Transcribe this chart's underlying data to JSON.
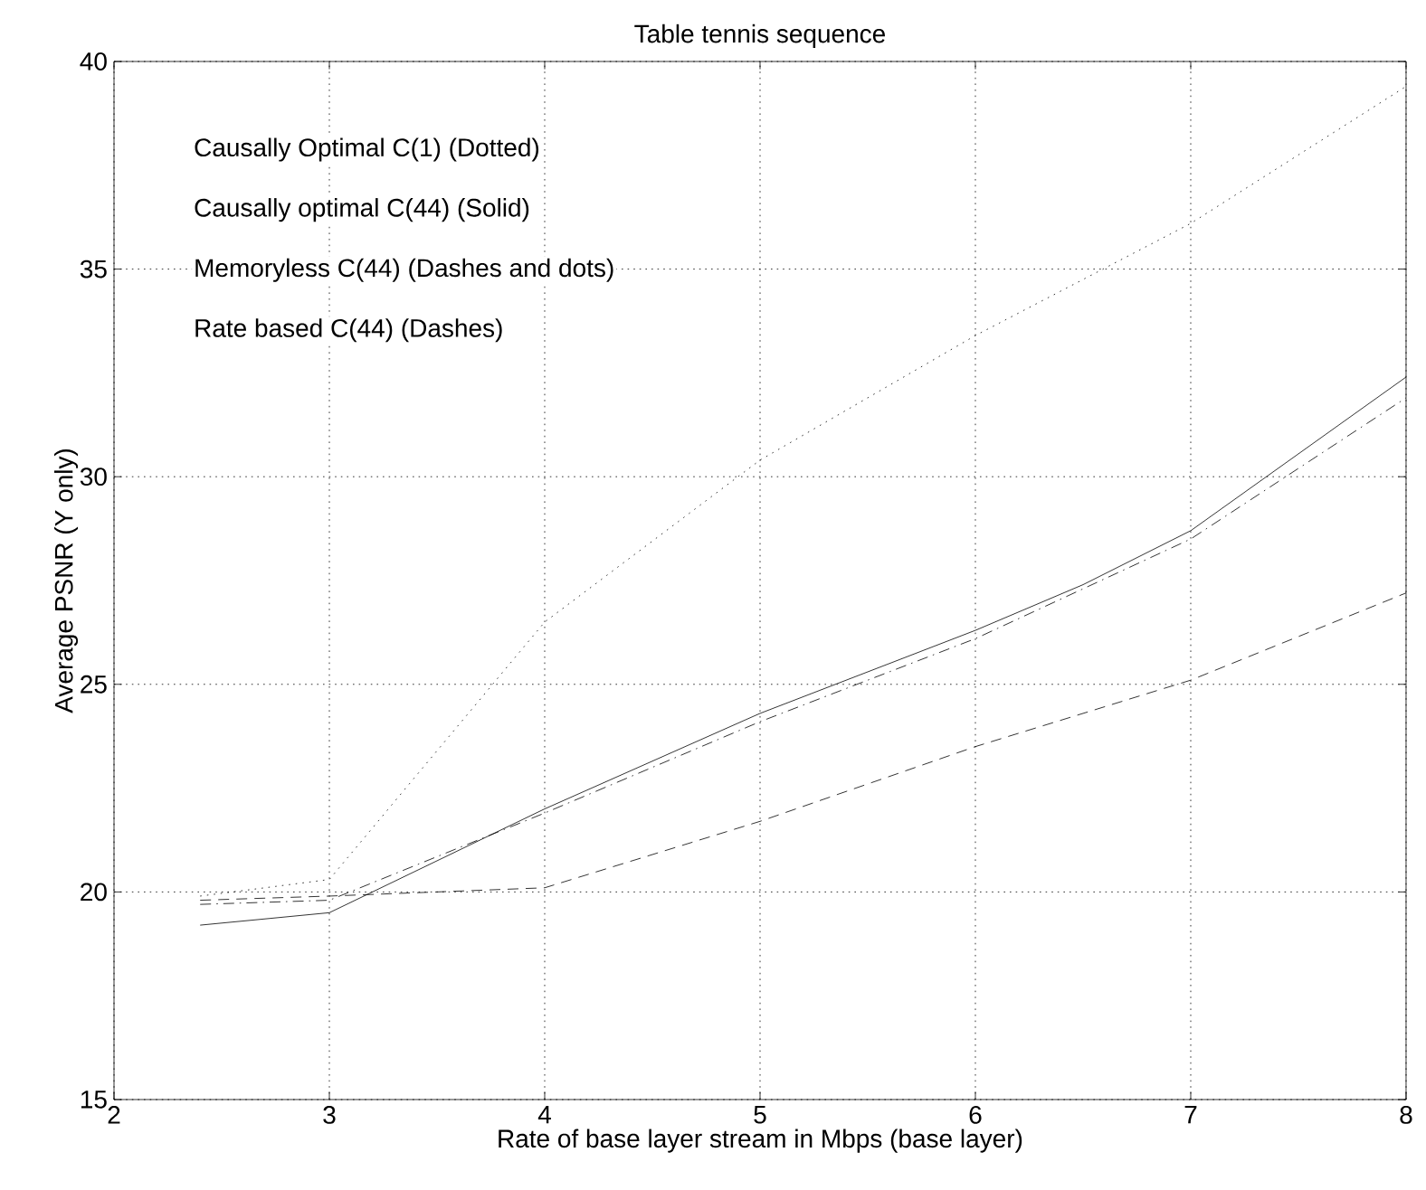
{
  "chart_data": {
    "type": "line",
    "title": "Table tennis sequence",
    "xlabel": "Rate of base layer stream in Mbps (base layer)",
    "ylabel": "Average PSNR (Y only)",
    "xlim": [
      2,
      8
    ],
    "ylim": [
      15,
      40
    ],
    "xticks": [
      2,
      3,
      4,
      5,
      6,
      7,
      8
    ],
    "yticks": [
      15,
      20,
      25,
      30,
      35,
      40
    ],
    "grid": true,
    "marker": "none",
    "annotations": [
      "Causally Optimal C(1) (Dotted)",
      "Causally optimal C(44) (Solid)",
      "Memoryless C(44) (Dashes and dots)",
      "Rate based C(44) (Dashes)"
    ],
    "series": [
      {
        "color": "#000000",
        "line_style": "dotted",
        "x": [
          2.4,
          3,
          4,
          5,
          6,
          7,
          8
        ],
        "values": [
          19.9,
          20.3,
          26.5,
          30.4,
          33.4,
          36.1,
          39.4
        ]
      },
      {
        "color": "#000000",
        "line_style": "solid",
        "x": [
          2.4,
          3,
          4,
          5,
          6,
          6.5,
          7,
          8
        ],
        "values": [
          19.2,
          19.5,
          22.0,
          24.3,
          26.3,
          27.4,
          28.7,
          32.4
        ]
      },
      {
        "color": "#000000",
        "line_style": "dashdot",
        "x": [
          2.4,
          3,
          4,
          5,
          6,
          7,
          8
        ],
        "values": [
          19.7,
          19.8,
          21.9,
          24.1,
          26.1,
          28.5,
          31.9
        ]
      },
      {
        "color": "#000000",
        "line_style": "dashed",
        "x": [
          2.4,
          3,
          4,
          5,
          6,
          7,
          8
        ],
        "values": [
          19.8,
          19.9,
          20.1,
          21.7,
          23.5,
          25.1,
          27.2
        ]
      }
    ]
  }
}
